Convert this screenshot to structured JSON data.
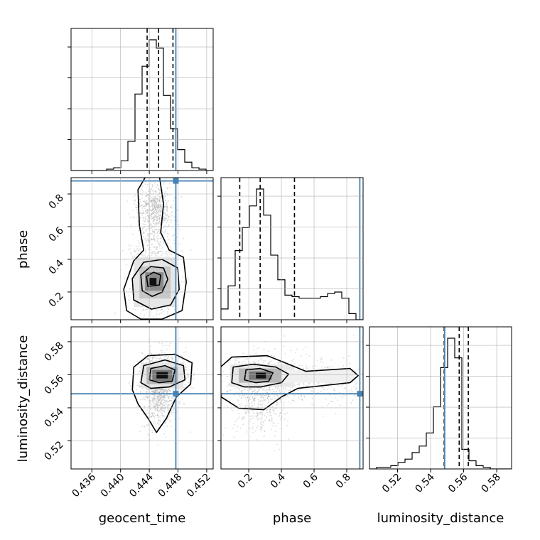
{
  "colors": {
    "truth": "#4682b4",
    "density": "#000000",
    "grid": "#b0b0b0",
    "scatter": "#9a9a9a"
  },
  "chart_data": {
    "type": "corner",
    "parameters": [
      "geocent_time",
      "phase",
      "luminosity_distance"
    ],
    "truths": {
      "geocent_time": 0.4477,
      "phase": 0.88,
      "luminosity_distance": 0.5485
    },
    "ranges": {
      "geocent_time": [
        0.4331,
        0.4529
      ],
      "phase": [
        0.03,
        0.9
      ],
      "luminosity_distance": [
        0.503,
        0.589
      ]
    },
    "ticks": {
      "geocent_time": [
        "0.436",
        "0.440",
        "0.444",
        "0.448",
        "0.452"
      ],
      "phase": [
        "0.2",
        "0.4",
        "0.6",
        "0.8"
      ],
      "luminosity_distance": [
        "0.52",
        "0.54",
        "0.56",
        "0.58"
      ]
    },
    "quantiles": {
      "geocent_time": [
        0.4437,
        0.4453,
        0.4473
      ],
      "phase": [
        0.145,
        0.27,
        0.48
      ],
      "luminosity_distance": [
        0.5482,
        0.5573,
        0.5628
      ]
    },
    "histograms": {
      "geocent_time": {
        "edges_start": 0.4331,
        "bin_width": 0.00099,
        "counts": [
          0,
          0,
          0,
          0,
          0,
          1,
          2,
          7,
          21,
          55,
          75,
          94,
          88,
          54,
          30,
          15,
          6,
          2,
          1,
          0
        ]
      },
      "phase": {
        "edges_start": 0.03,
        "bin_width": 0.0435,
        "counts": [
          7,
          22,
          45,
          60,
          74,
          85,
          68,
          42,
          26,
          16,
          15,
          14,
          14,
          14,
          15,
          17,
          18,
          14,
          4,
          0
        ]
      },
      "luminosity_distance": {
        "edges_start": 0.503,
        "bin_width": 0.0043,
        "counts": [
          0,
          1,
          1,
          2,
          4,
          6,
          10,
          14,
          22,
          38,
          62,
          80,
          68,
          12,
          5,
          2,
          1,
          0,
          0,
          0
        ]
      }
    },
    "contour_levels_sigma": [
      0.5,
      1.0,
      1.5,
      2.0
    ],
    "grid": true
  }
}
